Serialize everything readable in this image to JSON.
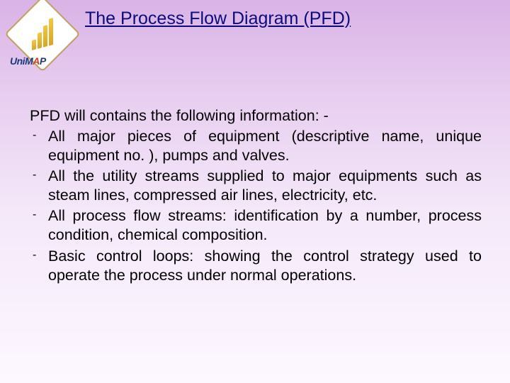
{
  "colors": {
    "title_color": "#0b0b7a",
    "body_text_color": "#000000",
    "background_gradient_top": "#d9b3e6",
    "background_gradient_bottom": "#fdf8ff",
    "logo_border": "#bfa060",
    "logo_bar": "#f5c542",
    "logo_text_primary": "#1a3a7a",
    "logo_text_accent": "#d04020"
  },
  "typography": {
    "title_fontsize_pt": 19,
    "body_fontsize_pt": 16,
    "font_family": "Arial"
  },
  "logo": {
    "brand_text_parts": {
      "prefix": "Uni",
      "m": "M",
      "a": "A",
      "p": "P"
    },
    "icon_name": "unimap-bars-icon"
  },
  "title": "The Process Flow Diagram (PFD)",
  "intro": "PFD will contains the following information: -",
  "bullets": [
    "All major pieces of equipment (descriptive name, unique equipment no. ), pumps and valves.",
    "All the utility streams supplied to major equipments such as steam lines, compressed air lines, electricity, etc.",
    "All process flow streams: identification by a number, process condition, chemical composition.",
    "Basic control loops: showing the control strategy used to operate the process under normal operations."
  ]
}
